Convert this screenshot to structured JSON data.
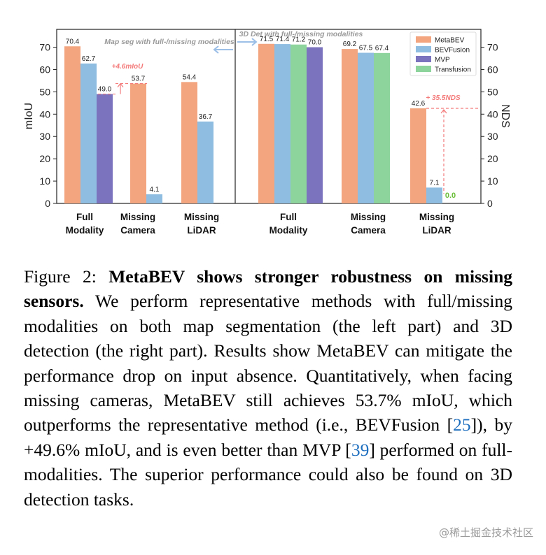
{
  "chart_data": [
    {
      "type": "bar",
      "task": "Map seg with full-/missing modalities",
      "ylabel": "mIoU",
      "ylim": [
        0,
        78
      ],
      "yticks": [
        0,
        10,
        20,
        30,
        40,
        50,
        60,
        70
      ],
      "groups": [
        {
          "label_line1": "Full",
          "label_line2": "Modality",
          "bars": [
            {
              "series": "MetaBEV",
              "value": 70.4,
              "label": "70.4"
            },
            {
              "series": "BEVFusion",
              "value": 62.7,
              "label": "62.7"
            },
            {
              "series": "MVP",
              "value": 49.0,
              "label": "49.0"
            }
          ]
        },
        {
          "label_line1": "Missing",
          "label_line2": "Camera",
          "bars": [
            {
              "series": "MetaBEV",
              "value": 53.7,
              "label": "53.7"
            },
            {
              "series": "BEVFusion",
              "value": 4.1,
              "label": "4.1"
            }
          ]
        },
        {
          "label_line1": "Missing",
          "label_line2": "LiDAR",
          "bars": [
            {
              "series": "MetaBEV",
              "value": 54.4,
              "label": "54.4"
            },
            {
              "series": "BEVFusion",
              "value": 36.7,
              "label": "36.7"
            }
          ]
        }
      ],
      "annotation": "+4.6mIoU"
    },
    {
      "type": "bar",
      "task": "3D Det with full-/missing modalities",
      "ylabel": "NDS",
      "ylim": [
        0,
        78
      ],
      "yticks": [
        0,
        10,
        20,
        30,
        40,
        50,
        60,
        70
      ],
      "groups": [
        {
          "label_line1": "Full",
          "label_line2": "Modality",
          "bars": [
            {
              "series": "MetaBEV",
              "value": 71.5,
              "label": "71.5"
            },
            {
              "series": "BEVFusion",
              "value": 71.4,
              "label": "71.4"
            },
            {
              "series": "Transfusion",
              "value": 71.2,
              "label": "71.2"
            },
            {
              "series": "MVP",
              "value": 70.0,
              "label": "70.0"
            }
          ]
        },
        {
          "label_line1": "Missing",
          "label_line2": "Camera",
          "bars": [
            {
              "series": "MetaBEV",
              "value": 69.2,
              "label": "69.2"
            },
            {
              "series": "BEVFusion",
              "value": 67.5,
              "label": "67.5"
            },
            {
              "series": "Transfusion",
              "value": 67.4,
              "label": "67.4"
            }
          ]
        },
        {
          "label_line1": "Missing",
          "label_line2": "LiDAR",
          "bars": [
            {
              "series": "MetaBEV",
              "value": 42.6,
              "label": "42.6"
            },
            {
              "series": "BEVFusion",
              "value": 7.1,
              "label": "7.1"
            },
            {
              "series": "Transfusion",
              "value": 0.0,
              "label": "0.0"
            }
          ]
        }
      ],
      "annotation": "+ 35.5NDS"
    }
  ],
  "legend": [
    {
      "name": "MetaBEV",
      "color": "#F2A57E"
    },
    {
      "name": "BEVFusion",
      "color": "#8FBDE2"
    },
    {
      "name": "MVP",
      "color": "#7C73BE"
    },
    {
      "name": "Transfusion",
      "color": "#8CD49B"
    }
  ],
  "colors": {
    "annotation": "#F47A7A",
    "zero_label": "#6CBF3A"
  },
  "caption": {
    "figure_label": "Figure 2:",
    "bold_title": "MetaBEV shows stronger robustness on missing sensors.",
    "text_part1": "We perform representative methods with full/missing modalities on both map segmentation (the left part) and 3D detection (the right part). Results show MetaBEV can mitigate the performance drop on input absence. Quantitatively, when facing missing cameras, MetaBEV still achieves 53.7% mIoU, which outperforms the representative method (i.e., BEVFusion [",
    "ref1": "25",
    "text_part2": "]), by +49.6% mIoU, and is even better than MVP [",
    "ref2": "39",
    "text_part3": "] performed on full-modalities. The superior performance could also be found on 3D detection tasks."
  },
  "watermark": "@稀土掘金技术社区"
}
